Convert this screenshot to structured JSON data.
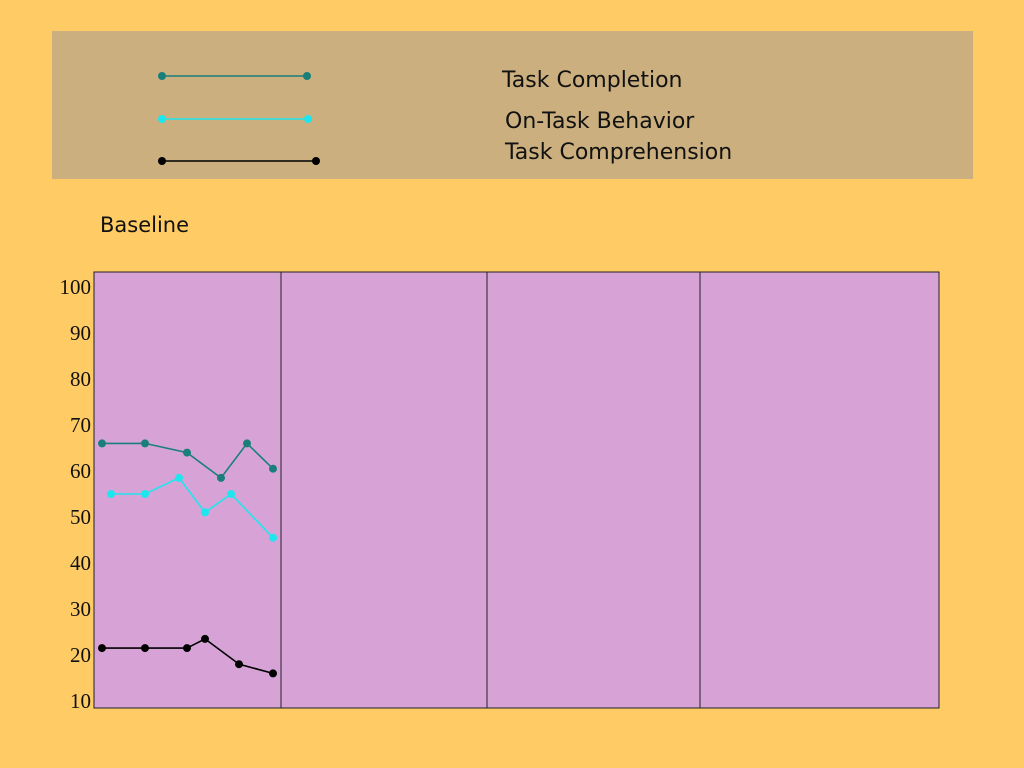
{
  "phase_label": "Baseline",
  "colors": {
    "background": "#FFCB65",
    "legend_box": "#CBAF7E",
    "plot_area": "#D7A3D7",
    "task_completion": "#1A7F7A",
    "on_task_behavior": "#1EE6EE",
    "task_comprehension": "#000000"
  },
  "chart_data": {
    "type": "line",
    "title": "",
    "xlabel": "",
    "ylabel": "",
    "ylim": [
      10,
      100
    ],
    "yticks": [
      "100",
      "90",
      "80",
      "70",
      "60",
      "50",
      "40",
      "30",
      "20",
      "10"
    ],
    "phases": 4,
    "grid": false,
    "legend_placement": "top",
    "series": [
      {
        "name": "Task Completion",
        "color": "#1A7F7A",
        "x": [
          1,
          2,
          3,
          4,
          5,
          6
        ],
        "y": [
          66,
          66,
          64,
          58.5,
          66,
          60.5
        ]
      },
      {
        "name": "On-Task Behavior",
        "color": "#1EE6EE",
        "x": [
          1,
          2,
          3,
          4,
          5,
          6
        ],
        "y": [
          55,
          55,
          58.5,
          51,
          55,
          45.5
        ]
      },
      {
        "name": "Task Comprehension",
        "color": "#000000",
        "x": [
          1,
          2,
          3,
          4,
          5,
          6
        ],
        "y": [
          21.5,
          21.5,
          21.5,
          23.5,
          18,
          16
        ]
      }
    ]
  }
}
